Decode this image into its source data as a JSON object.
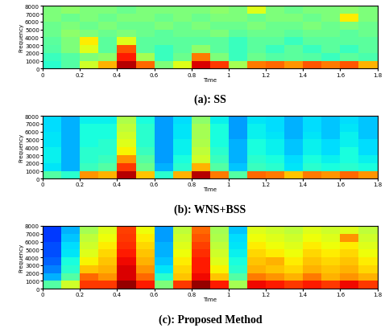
{
  "chart_data": [
    {
      "type": "heatmap",
      "title": "(a): SS",
      "xlabel": "Time",
      "ylabel": "Frequency",
      "x": [
        0,
        0.1,
        0.2,
        0.3,
        0.4,
        0.5,
        0.6,
        0.7,
        0.8,
        0.9,
        1,
        1.1,
        1.2,
        1.3,
        1.4,
        1.5,
        1.6,
        1.7,
        1.8
      ],
      "y": [
        0,
        1000,
        2000,
        3000,
        4000,
        5000,
        6000,
        7000,
        8000
      ],
      "xlim": [
        0,
        1.8
      ],
      "ylim": [
        0,
        8000
      ],
      "xticks": [
        0,
        0.2,
        0.4,
        0.6,
        0.8,
        1,
        1.2,
        1.4,
        1.6,
        1.8
      ],
      "yticks": [
        0,
        1000,
        2000,
        3000,
        4000,
        5000,
        6000,
        7000,
        8000
      ],
      "vrange": [
        0,
        1
      ],
      "cells": [
        [
          0.4,
          0.45,
          0.6,
          0.72,
          0.95,
          0.8,
          0.5,
          0.62,
          0.92,
          0.85,
          0.55,
          0.78,
          0.8,
          0.75,
          0.82,
          0.78,
          0.82,
          0.72
        ],
        [
          0.42,
          0.45,
          0.5,
          0.52,
          0.88,
          0.55,
          0.42,
          0.48,
          0.78,
          0.5,
          0.42,
          0.48,
          0.45,
          0.46,
          0.45,
          0.42,
          0.46,
          0.44
        ],
        [
          0.45,
          0.5,
          0.62,
          0.46,
          0.82,
          0.46,
          0.42,
          0.46,
          0.52,
          0.46,
          0.42,
          0.46,
          0.42,
          0.46,
          0.42,
          0.46,
          0.42,
          0.46
        ],
        [
          0.46,
          0.5,
          0.66,
          0.46,
          0.62,
          0.46,
          0.46,
          0.46,
          0.46,
          0.46,
          0.42,
          0.46,
          0.46,
          0.42,
          0.46,
          0.46,
          0.46,
          0.46
        ],
        [
          0.48,
          0.52,
          0.5,
          0.48,
          0.5,
          0.48,
          0.46,
          0.48,
          0.48,
          0.5,
          0.46,
          0.48,
          0.48,
          0.46,
          0.48,
          0.48,
          0.46,
          0.48
        ],
        [
          0.48,
          0.5,
          0.48,
          0.5,
          0.48,
          0.48,
          0.5,
          0.48,
          0.5,
          0.48,
          0.48,
          0.5,
          0.48,
          0.48,
          0.5,
          0.48,
          0.5,
          0.48
        ],
        [
          0.5,
          0.48,
          0.5,
          0.48,
          0.5,
          0.5,
          0.48,
          0.5,
          0.48,
          0.5,
          0.5,
          0.48,
          0.5,
          0.5,
          0.48,
          0.5,
          0.66,
          0.5
        ],
        [
          0.5,
          0.52,
          0.5,
          0.5,
          0.48,
          0.5,
          0.5,
          0.5,
          0.5,
          0.52,
          0.5,
          0.62,
          0.5,
          0.48,
          0.5,
          0.5,
          0.52,
          0.5
        ]
      ]
    },
    {
      "type": "heatmap",
      "title": "(b): WNS+BSS",
      "xlabel": "Time",
      "ylabel": "Frequency",
      "x": [
        0,
        0.1,
        0.2,
        0.3,
        0.4,
        0.5,
        0.6,
        0.7,
        0.8,
        0.9,
        1,
        1.1,
        1.2,
        1.3,
        1.4,
        1.5,
        1.6,
        1.7,
        1.8
      ],
      "y": [
        0,
        1000,
        2000,
        3000,
        4000,
        5000,
        6000,
        7000,
        8000
      ],
      "xlim": [
        0,
        1.8
      ],
      "ylim": [
        0,
        8000
      ],
      "xticks": [
        0,
        0.2,
        0.4,
        0.6,
        0.8,
        1,
        1.2,
        1.4,
        1.6,
        1.8
      ],
      "yticks": [
        0,
        1000,
        2000,
        3000,
        4000,
        5000,
        6000,
        7000,
        8000
      ],
      "vrange": [
        0,
        1
      ],
      "cells": [
        [
          0.45,
          0.4,
          0.75,
          0.72,
          0.95,
          0.7,
          0.4,
          0.72,
          0.95,
          0.78,
          0.45,
          0.8,
          0.78,
          0.7,
          0.78,
          0.75,
          0.8,
          0.75
        ],
        [
          0.35,
          0.3,
          0.42,
          0.45,
          0.85,
          0.48,
          0.3,
          0.4,
          0.72,
          0.45,
          0.32,
          0.42,
          0.4,
          0.35,
          0.4,
          0.38,
          0.4,
          0.38
        ],
        [
          0.36,
          0.3,
          0.4,
          0.42,
          0.75,
          0.45,
          0.28,
          0.38,
          0.6,
          0.42,
          0.3,
          0.4,
          0.38,
          0.34,
          0.38,
          0.36,
          0.38,
          0.36
        ],
        [
          0.36,
          0.3,
          0.4,
          0.4,
          0.65,
          0.42,
          0.28,
          0.36,
          0.58,
          0.4,
          0.3,
          0.38,
          0.36,
          0.32,
          0.36,
          0.34,
          0.38,
          0.34
        ],
        [
          0.35,
          0.3,
          0.38,
          0.4,
          0.62,
          0.4,
          0.28,
          0.36,
          0.56,
          0.38,
          0.3,
          0.38,
          0.36,
          0.32,
          0.36,
          0.34,
          0.36,
          0.34
        ],
        [
          0.35,
          0.3,
          0.38,
          0.38,
          0.6,
          0.4,
          0.28,
          0.35,
          0.55,
          0.38,
          0.28,
          0.36,
          0.35,
          0.3,
          0.35,
          0.32,
          0.36,
          0.32
        ],
        [
          0.34,
          0.3,
          0.38,
          0.38,
          0.58,
          0.4,
          0.28,
          0.35,
          0.55,
          0.38,
          0.28,
          0.36,
          0.34,
          0.3,
          0.34,
          0.32,
          0.35,
          0.32
        ],
        [
          0.34,
          0.3,
          0.36,
          0.36,
          0.56,
          0.38,
          0.28,
          0.34,
          0.52,
          0.36,
          0.28,
          0.35,
          0.34,
          0.3,
          0.34,
          0.32,
          0.34,
          0.32
        ]
      ]
    },
    {
      "type": "heatmap",
      "title": "(c): Proposed Method",
      "xlabel": "Time",
      "ylabel": "Frequency",
      "x": [
        0,
        0.1,
        0.2,
        0.3,
        0.4,
        0.5,
        0.6,
        0.7,
        0.8,
        0.9,
        1,
        1.1,
        1.2,
        1.3,
        1.4,
        1.5,
        1.6,
        1.7,
        1.8
      ],
      "y": [
        0,
        1000,
        2000,
        3000,
        4000,
        5000,
        6000,
        7000,
        8000
      ],
      "xlim": [
        0,
        1.8
      ],
      "ylim": [
        0,
        8000
      ],
      "xticks": [
        0,
        0.2,
        0.4,
        0.6,
        0.8,
        1,
        1.2,
        1.4,
        1.6,
        1.8
      ],
      "yticks": [
        0,
        1000,
        2000,
        3000,
        4000,
        5000,
        6000,
        7000,
        8000
      ],
      "vrange": [
        0,
        1
      ],
      "cells": [
        [
          0.45,
          0.6,
          0.85,
          0.85,
          0.98,
          0.88,
          0.5,
          0.85,
          0.98,
          0.88,
          0.55,
          0.9,
          0.88,
          0.85,
          0.88,
          0.85,
          0.9,
          0.85
        ],
        [
          0.3,
          0.45,
          0.8,
          0.75,
          0.92,
          0.8,
          0.4,
          0.7,
          0.9,
          0.7,
          0.45,
          0.78,
          0.75,
          0.72,
          0.78,
          0.72,
          0.75,
          0.72
        ],
        [
          0.25,
          0.4,
          0.7,
          0.72,
          0.92,
          0.75,
          0.35,
          0.68,
          0.88,
          0.65,
          0.4,
          0.72,
          0.7,
          0.68,
          0.72,
          0.7,
          0.72,
          0.68
        ],
        [
          0.22,
          0.38,
          0.65,
          0.7,
          0.9,
          0.72,
          0.32,
          0.66,
          0.88,
          0.62,
          0.38,
          0.7,
          0.72,
          0.66,
          0.7,
          0.68,
          0.7,
          0.66
        ],
        [
          0.2,
          0.35,
          0.62,
          0.68,
          0.88,
          0.7,
          0.3,
          0.64,
          0.86,
          0.6,
          0.36,
          0.68,
          0.66,
          0.64,
          0.68,
          0.66,
          0.68,
          0.64
        ],
        [
          0.2,
          0.34,
          0.6,
          0.66,
          0.86,
          0.68,
          0.3,
          0.62,
          0.84,
          0.58,
          0.35,
          0.66,
          0.64,
          0.62,
          0.66,
          0.64,
          0.66,
          0.62
        ],
        [
          0.18,
          0.32,
          0.58,
          0.64,
          0.85,
          0.66,
          0.28,
          0.6,
          0.82,
          0.56,
          0.34,
          0.64,
          0.62,
          0.6,
          0.64,
          0.62,
          0.75,
          0.6
        ],
        [
          0.18,
          0.3,
          0.55,
          0.62,
          0.84,
          0.64,
          0.28,
          0.58,
          0.8,
          0.55,
          0.32,
          0.62,
          0.6,
          0.58,
          0.62,
          0.6,
          0.62,
          0.58
        ]
      ]
    }
  ]
}
